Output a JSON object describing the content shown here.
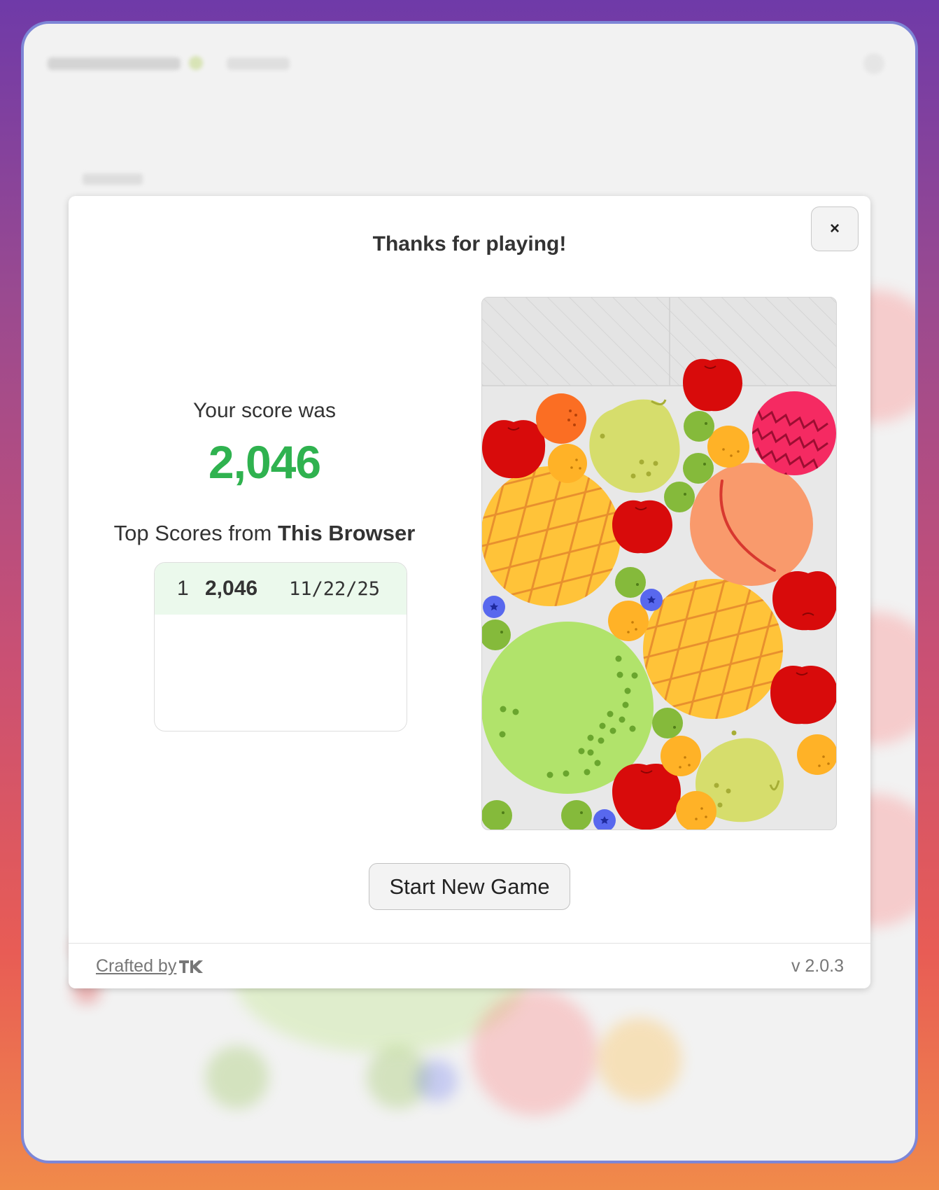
{
  "modal": {
    "title": "Thanks for playing!",
    "close_label": "×",
    "score_label": "Your score was",
    "score_value": "2,046",
    "top_scores_prefix": "Top Scores from ",
    "top_scores_emphasis": "This Browser",
    "top_scores": [
      {
        "rank": "1",
        "score": "2,046",
        "date": "11/22/25"
      }
    ],
    "start_button": "Start New Game",
    "footer": {
      "crafted_by": "Crafted by",
      "version": "v 2.0.3"
    }
  },
  "colors": {
    "score_green": "#2fb24f",
    "score_row_bg": "#ebf9ec",
    "apple": "#d80b0b",
    "orange": "#fb6e23",
    "lemon": "#ffb227",
    "pear": "#d6dd6c",
    "grape_green": "#85ba3b",
    "blueberry": "#5868ee",
    "pineapple": "#ffc339",
    "melon": "#b1e36b",
    "peach": "#f99a6c",
    "dragonfruit": "#f52a62"
  },
  "board": {
    "fruits": [
      "pineapple",
      "pineapple",
      "melon",
      "peach",
      "dragonfruit",
      "pear",
      "pear",
      "apple",
      "apple",
      "apple",
      "apple",
      "apple",
      "apple",
      "orange",
      "lemon",
      "lemon",
      "lemon",
      "lemon",
      "lemon",
      "lemon",
      "grape",
      "grape",
      "grape",
      "grape",
      "grape",
      "grape",
      "grape",
      "grape",
      "blueberry",
      "blueberry",
      "blueberry"
    ]
  }
}
